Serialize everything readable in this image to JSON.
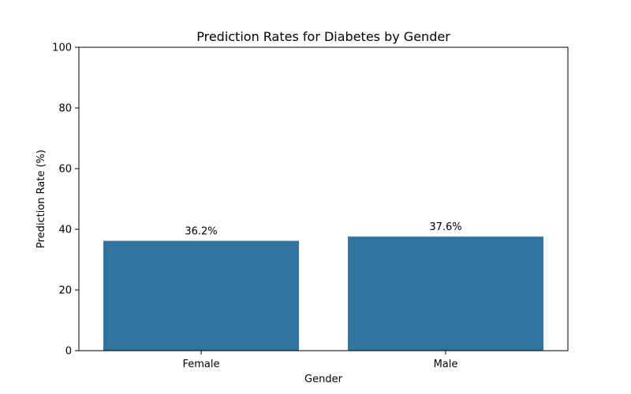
{
  "chart_data": {
    "type": "bar",
    "title": "Prediction Rates for Diabetes by Gender",
    "xlabel": "Gender",
    "ylabel": "Prediction Rate (%)",
    "categories": [
      "Female",
      "Male"
    ],
    "values": [
      36.2,
      37.6
    ],
    "value_labels": [
      "36.2%",
      "37.6%"
    ],
    "ylim": [
      0,
      100
    ],
    "yticks": [
      0,
      20,
      40,
      60,
      80,
      100
    ],
    "ytick_labels": [
      "0",
      "20",
      "40",
      "60",
      "80",
      "100"
    ],
    "grid": false,
    "bar_color": "#3274a1"
  }
}
